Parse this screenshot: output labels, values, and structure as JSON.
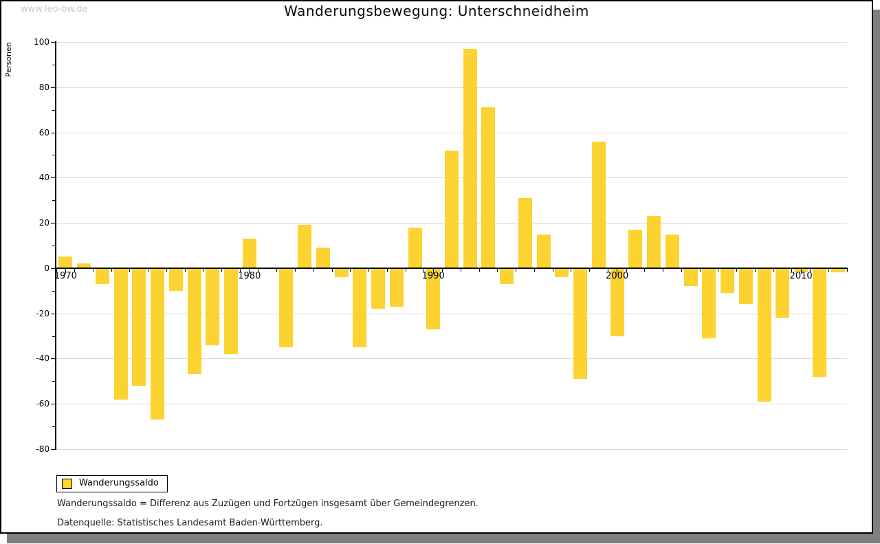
{
  "watermark": "www.leo-bw.de",
  "title": "Wanderungsbewegung: Unterschneidheim",
  "y_axis_title": "Personen",
  "legend": {
    "label": "Wanderungssaldo"
  },
  "footnotes": {
    "definition": "Wanderungssaldo = Differenz aus Zuzügen und Fortzügen insgesamt über Gemeindegrenzen.",
    "source": "Datenquelle: Statistisches Landesamt Baden-Württemberg."
  },
  "colors": {
    "bar": "#fcd330",
    "grid": "#d9d9d9",
    "axis": "#000000",
    "watermark": "#c9c9c9",
    "shadow": "#808080",
    "background": "#ffffff"
  },
  "chart_data": {
    "type": "bar",
    "title": "Wanderungsbewegung: Unterschneidheim",
    "xlabel": "",
    "ylabel": "Personen",
    "ylim": [
      -80,
      100
    ],
    "grid": true,
    "legend_position": "bottom-left",
    "series_name": "Wanderungssaldo",
    "years": [
      1970,
      1971,
      1972,
      1973,
      1974,
      1975,
      1976,
      1977,
      1978,
      1979,
      1980,
      1981,
      1982,
      1983,
      1984,
      1985,
      1986,
      1987,
      1988,
      1989,
      1990,
      1991,
      1992,
      1993,
      1994,
      1995,
      1996,
      1997,
      1998,
      1999,
      2000,
      2001,
      2002,
      2003,
      2004,
      2005,
      2006,
      2007,
      2008,
      2009,
      2010,
      2011,
      2012
    ],
    "values": [
      5,
      2,
      -7,
      -58,
      -52,
      -67,
      -10,
      -47,
      -34,
      -38,
      13,
      0,
      -35,
      19,
      9,
      -4,
      -35,
      -18,
      -17,
      18,
      -27,
      52,
      97,
      71,
      -7,
      31,
      15,
      -4,
      -49,
      56,
      -30,
      17,
      23,
      15,
      -8,
      -31,
      -11,
      -16,
      -59,
      -22,
      -2,
      -48,
      -2
    ],
    "x_tick_labels": [
      "1970",
      "1980",
      "1990",
      "2000",
      "2010"
    ],
    "y_ticks": [
      100,
      80,
      60,
      40,
      20,
      0,
      -20,
      -40,
      -60,
      -80
    ]
  }
}
